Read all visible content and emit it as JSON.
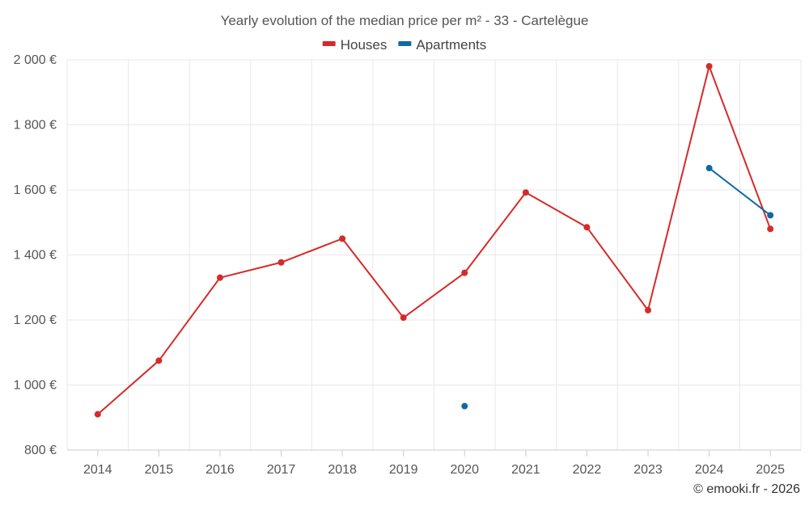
{
  "chart_data": {
    "type": "line",
    "title": "Yearly evolution of the median price per m² - 33 - Cartelègue",
    "categories": [
      "2014",
      "2015",
      "2016",
      "2017",
      "2018",
      "2019",
      "2020",
      "2021",
      "2022",
      "2023",
      "2024",
      "2025"
    ],
    "series": [
      {
        "name": "Houses",
        "color": "#d62a2a",
        "values": [
          910,
          1075,
          1330,
          1377,
          1450,
          1207,
          1345,
          1592,
          1485,
          1230,
          1980,
          1480
        ]
      },
      {
        "name": "Apartments",
        "color": "#0e6aa0",
        "values": [
          null,
          null,
          null,
          null,
          null,
          null,
          935,
          null,
          null,
          null,
          1667,
          1522
        ]
      }
    ],
    "ylim": [
      800,
      2000
    ],
    "yticks": [
      800,
      1000,
      1200,
      1400,
      1600,
      1800,
      2000
    ],
    "ytick_labels": [
      "800 €",
      "1 000 €",
      "1 200 €",
      "1 400 €",
      "1 600 €",
      "1 800 €",
      "2 000 €"
    ],
    "xlabel": "",
    "ylabel": "",
    "grid": true,
    "legend_position": "top-center"
  },
  "credit": "© emooki.fr - 2026"
}
